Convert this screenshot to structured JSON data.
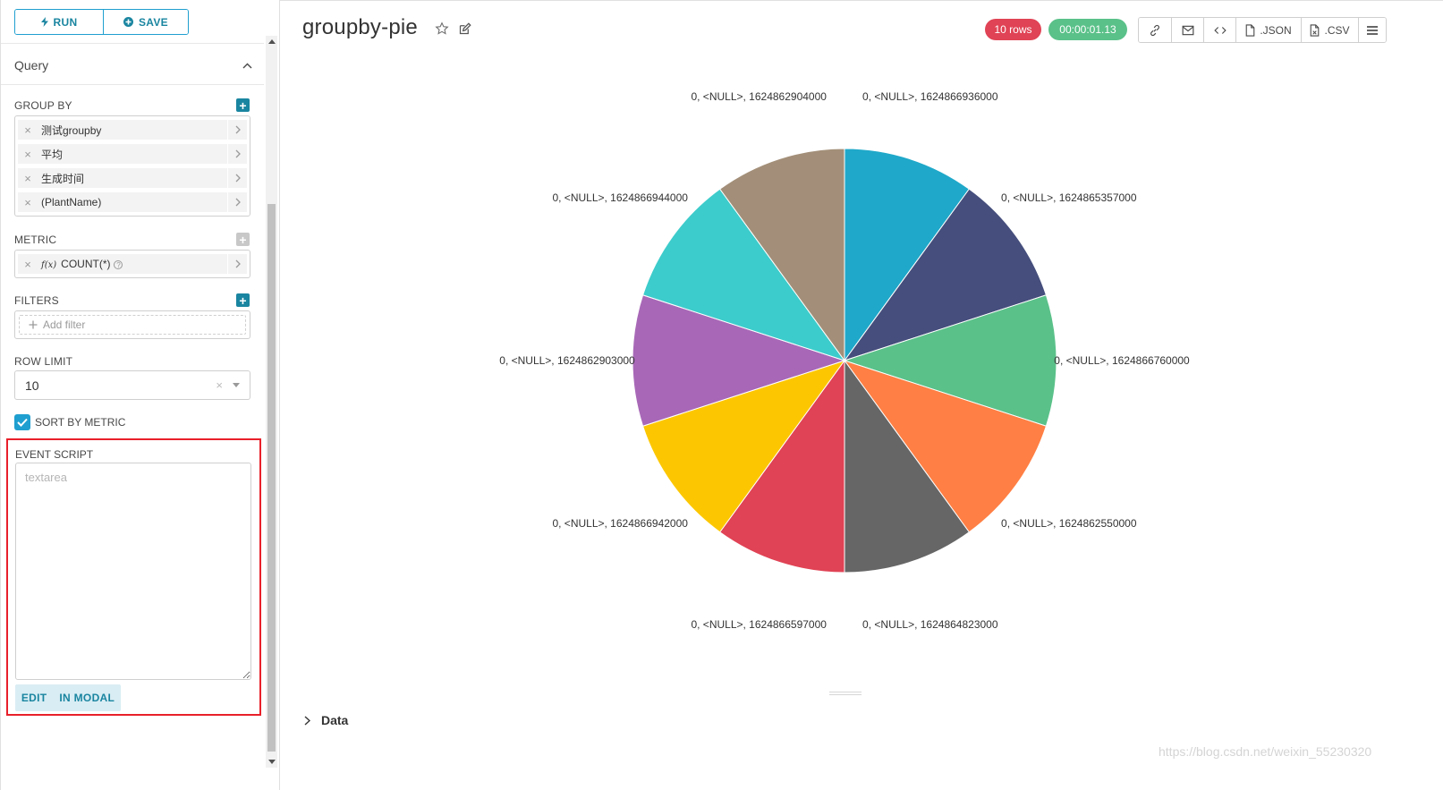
{
  "left_panel": {
    "run_label": "RUN",
    "save_label": "SAVE",
    "query_title": "Query",
    "group_by": {
      "label": "GROUP BY",
      "items": [
        "测试groupby",
        "平均",
        "生成时间",
        "(PlantName)"
      ]
    },
    "metric": {
      "label": "METRIC",
      "fx_symbol": "f(x)",
      "item": "COUNT(*)",
      "help_symbol": "?"
    },
    "filters": {
      "label": "FILTERS",
      "add_placeholder": "Add filter"
    },
    "row_limit": {
      "label": "ROW LIMIT",
      "value": "10"
    },
    "sort_by_metric": {
      "label": "SORT BY METRIC",
      "checked": true
    },
    "event_script": {
      "label": "EVENT SCRIPT",
      "placeholder": "textarea",
      "edit_label": "EDIT",
      "in_modal_label": "IN MODAL"
    }
  },
  "header": {
    "title": "groupby-pie",
    "rows_badge": "10 rows",
    "time_badge": "00:00:01.13",
    "json_label": ".JSON",
    "csv_label": ".CSV"
  },
  "chart_data": {
    "type": "pie",
    "title": "",
    "slices": [
      {
        "label": "0, <NULL>, 1624866936000",
        "value": 10,
        "color": "#1fa8c9"
      },
      {
        "label": "0, <NULL>, 1624865357000",
        "value": 10,
        "color": "#454e7c"
      },
      {
        "label": "0, <NULL>, 1624866760000",
        "value": 10,
        "color": "#5ac189"
      },
      {
        "label": "0, <NULL>, 1624862550000",
        "value": 10,
        "color": "#ff7f44"
      },
      {
        "label": "0, <NULL>, 1624864823000",
        "value": 10,
        "color": "#666666"
      },
      {
        "label": "0, <NULL>, 1624866597000",
        "value": 10,
        "color": "#e04355"
      },
      {
        "label": "0, <NULL>, 1624866942000",
        "value": 10,
        "color": "#fcc700"
      },
      {
        "label": "0, <NULL>, 1624862903000",
        "value": 10,
        "color": "#a868b7"
      },
      {
        "label": "0, <NULL>, 1624866944000",
        "value": 10,
        "color": "#3ccccb"
      },
      {
        "label": "0, <NULL>, 1624862904000",
        "value": 10,
        "color": "#a38f79"
      }
    ]
  },
  "data_section": {
    "label": "Data"
  },
  "watermark": "https://blog.csdn.net/weixin_55230320"
}
